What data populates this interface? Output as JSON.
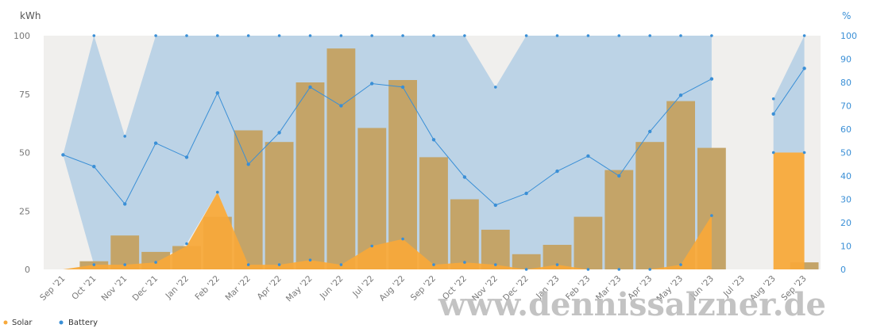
{
  "chart_data": {
    "type": "bar",
    "categories": [
      "Sep '21",
      "Oct '21",
      "Nov '21",
      "Dec '21",
      "Jan '22",
      "Feb '22",
      "Mar '22",
      "Apr '22",
      "May '22",
      "Jun '22",
      "Jul '22",
      "Aug '22",
      "Sep '22",
      "Oct '22",
      "Nov '22",
      "Dec '22",
      "Jan '23",
      "Feb '23",
      "Mar '23",
      "Apr '23",
      "May '23",
      "Jun '23",
      "Jul '23",
      "Aug '23",
      "Sep '23"
    ],
    "y_left": {
      "label": "kWh",
      "ticks": [
        0,
        25,
        50,
        75,
        100
      ],
      "range": [
        0,
        100
      ]
    },
    "y_right": {
      "label": "%",
      "ticks": [
        0,
        10,
        20,
        30,
        40,
        50,
        60,
        70,
        80,
        90,
        100
      ],
      "range": [
        0,
        100
      ]
    },
    "bars": [
      null,
      3.5,
      14.5,
      7.5,
      10,
      22.5,
      59.5,
      54.5,
      80,
      94.5,
      60.5,
      81,
      48,
      30,
      17,
      6.5,
      10.5,
      22.5,
      42.5,
      54.5,
      72,
      52,
      null,
      null,
      3
    ],
    "series": [
      {
        "name": "Solar",
        "color": "#f7a93b",
        "type": "area",
        "values": [
          0,
          2,
          2,
          3,
          10,
          33,
          2,
          2,
          4,
          2,
          10,
          13,
          2,
          3,
          2,
          0,
          2,
          0,
          0,
          0,
          2,
          23,
          null,
          50,
          50
        ]
      },
      {
        "name": "Battery",
        "color": "#3a8fd6",
        "type": "line",
        "axis": "right",
        "values": [
          49,
          44,
          28,
          54,
          48,
          75.5,
          45,
          58.5,
          78,
          70,
          79.5,
          78,
          55.5,
          39.5,
          27.5,
          32.5,
          42,
          48.5,
          40,
          59,
          74.5,
          81.5,
          null,
          66.5,
          86
        ]
      },
      {
        "name": "Battery range",
        "type": "band",
        "color": "#bcd3e6",
        "upper": [
          49,
          100,
          57,
          100,
          100,
          100,
          100,
          100,
          100,
          100,
          100,
          100,
          100,
          100,
          78,
          100,
          100,
          100,
          100,
          100,
          100,
          100,
          null,
          73,
          100
        ],
        "lower": [
          49,
          2,
          2,
          3,
          11,
          33,
          2,
          2,
          4,
          2,
          10,
          13,
          2,
          3,
          2,
          0,
          2,
          0,
          0,
          0,
          2,
          23,
          null,
          50,
          50
        ]
      }
    ],
    "legend": [
      "Solar",
      "Battery"
    ],
    "legend_position": "bottom-left",
    "grid": false
  },
  "watermark": "www.dennissalzner.de"
}
